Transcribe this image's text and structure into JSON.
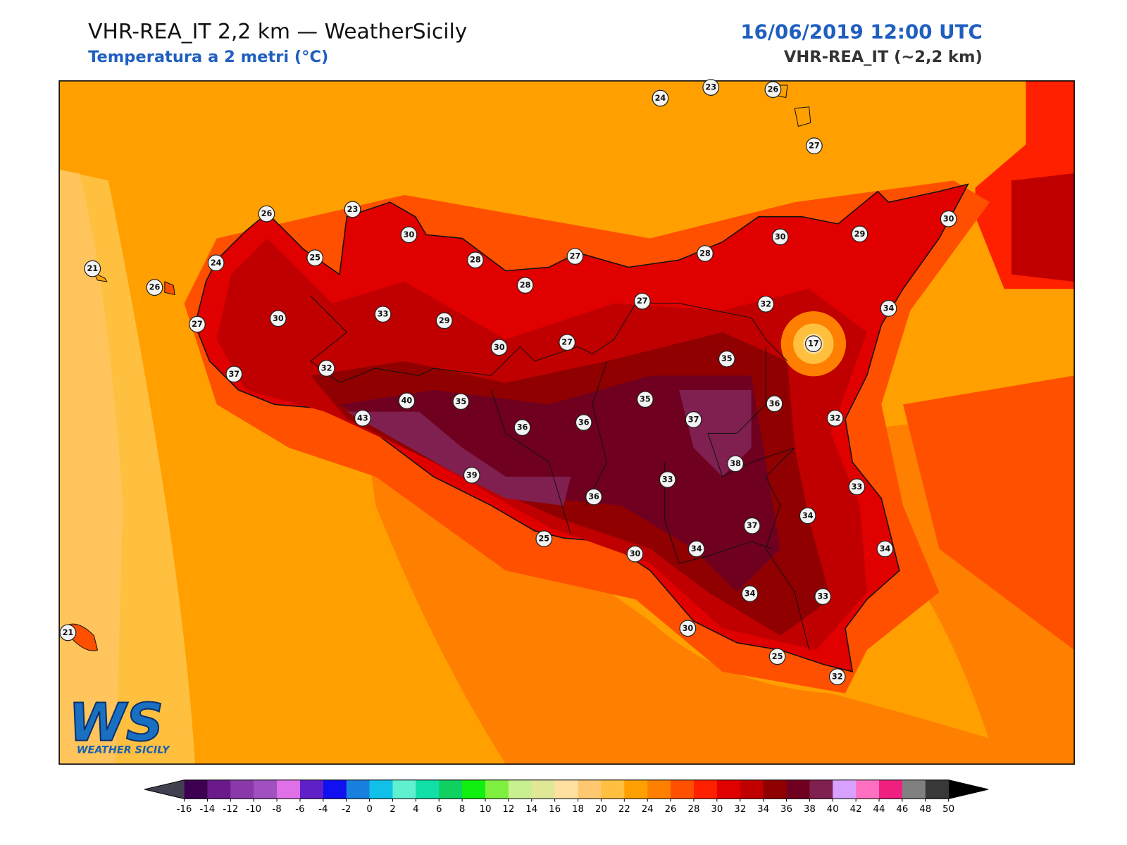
{
  "header": {
    "title": "VHR-REA_IT 2,2 km — WeatherSicily",
    "subtitle": "Temperatura a 2 metri (°C)",
    "date": "16/06/2019 12:00 UTC",
    "model": "VHR-REA_IT (~2,2 km)"
  },
  "stations": [
    21,
    26,
    24,
    26,
    25,
    23,
    30,
    28,
    27,
    28,
    30,
    29,
    30,
    24,
    23,
    26,
    27,
    27,
    30,
    33,
    29,
    28,
    27,
    32,
    34,
    17,
    30,
    27,
    37,
    32,
    35,
    40,
    35,
    35,
    36,
    43,
    36,
    36,
    37,
    32,
    38,
    39,
    33,
    36,
    33,
    37,
    34,
    25,
    30,
    34,
    34,
    34,
    33,
    30,
    21,
    25,
    32
  ],
  "colorbar": {
    "ticks": [
      -16,
      -14,
      -12,
      -10,
      -8,
      -6,
      -4,
      -2,
      0,
      2,
      4,
      6,
      8,
      10,
      12,
      14,
      16,
      18,
      20,
      22,
      24,
      26,
      28,
      30,
      32,
      34,
      36,
      38,
      40,
      42,
      44,
      46,
      48,
      50
    ],
    "colors": [
      "#3d0050",
      "#6a1a8a",
      "#8a3aa8",
      "#a050c0",
      "#e070e8",
      "#6020c8",
      "#1010f0",
      "#1a80e0",
      "#10c0e8",
      "#60f0d0",
      "#10e0a8",
      "#10d060",
      "#10f010",
      "#80f040",
      "#c8f090",
      "#e0e898",
      "#ffe0a0",
      "#ffc870",
      "#ffc040",
      "#ffa000",
      "#ff8000",
      "#ff5000",
      "#ff2000",
      "#e00000",
      "#c00000",
      "#900000",
      "#700020",
      "#802050",
      "#d8a0ff",
      "#ff70c0",
      "#f02080",
      "#808080",
      "#383838"
    ],
    "under_color": "#404050",
    "over_color": "#000000"
  },
  "logo": {
    "mark": "WS",
    "name": "WEATHER SICILY"
  }
}
